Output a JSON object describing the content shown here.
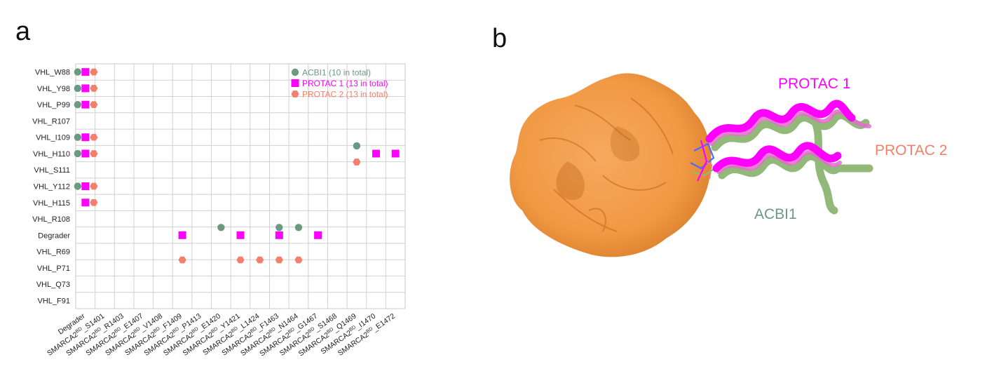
{
  "figure": {
    "panel_a_label": "a",
    "panel_b_label": "b"
  },
  "chart_data": {
    "type": "scatter",
    "title": "",
    "xlabel": "",
    "ylabel": "",
    "y_categories": [
      "VHL_W88",
      "VHL_Y98",
      "VHL_P99",
      "VHL_R107",
      "VHL_I109",
      "VHL_H110",
      "VHL_S111",
      "VHL_Y112",
      "VHL_H115",
      "VHL_R108",
      "Degrader",
      "VHL_R69",
      "VHL_P71",
      "VHL_Q73",
      "VHL_F91"
    ],
    "x_categories": [
      {
        "pre": "Degrader",
        "sup": "",
        "post": ""
      },
      {
        "pre": "SMARCA2",
        "sup": "BD",
        "post": "_S1401"
      },
      {
        "pre": "SMARCA2",
        "sup": "BD",
        "post": "_R1403"
      },
      {
        "pre": "SMARCA2",
        "sup": "BD",
        "post": "_E1407"
      },
      {
        "pre": "SMARCA2",
        "sup": "BD",
        "post": "_V1408"
      },
      {
        "pre": "SMARCA2",
        "sup": "BD",
        "post": "_F1409"
      },
      {
        "pre": "SMARCA2",
        "sup": "BD",
        "post": "_P1413"
      },
      {
        "pre": "SMARCA2",
        "sup": "BD",
        "post": "_E1420"
      },
      {
        "pre": "SMARCA2",
        "sup": "BD",
        "post": "_Y1421"
      },
      {
        "pre": "SMARCA2",
        "sup": "BD",
        "post": "_L1424"
      },
      {
        "pre": "SMARCA2",
        "sup": "BD",
        "post": "_F1463"
      },
      {
        "pre": "SMARCA2",
        "sup": "BD",
        "post": "_N1464"
      },
      {
        "pre": "SMARCA2",
        "sup": "BD",
        "post": "_G1467"
      },
      {
        "pre": "SMARCA2",
        "sup": "BD",
        "post": "_S1468"
      },
      {
        "pre": "SMARCA2",
        "sup": "BD",
        "post": "_Q1469"
      },
      {
        "pre": "SMARCA2",
        "sup": "BD",
        "post": "_I1470"
      },
      {
        "pre": "SMARCA2",
        "sup": "BD",
        "post": "_E1472"
      }
    ],
    "legend_position": "top-right",
    "grid": true,
    "series": [
      {
        "name": "ACBI1 (10 in total)",
        "color": "#6b9a80",
        "marker": "circle",
        "points": [
          [
            0,
            "VHL_W88"
          ],
          [
            0,
            "VHL_Y98"
          ],
          [
            0,
            "VHL_P99"
          ],
          [
            0,
            "VHL_I109"
          ],
          [
            0,
            "VHL_H110"
          ],
          [
            0,
            "VHL_Y112"
          ],
          [
            7,
            "Degrader"
          ],
          [
            10,
            "Degrader"
          ],
          [
            11,
            "Degrader"
          ],
          [
            14,
            "VHL_H110"
          ]
        ]
      },
      {
        "name": "PROTAC 1 (13 in total)",
        "color": "#ff00ff",
        "marker": "square",
        "points": [
          [
            0,
            "VHL_W88"
          ],
          [
            0,
            "VHL_Y98"
          ],
          [
            0,
            "VHL_P99"
          ],
          [
            0,
            "VHL_I109"
          ],
          [
            0,
            "VHL_H110"
          ],
          [
            0,
            "VHL_Y112"
          ],
          [
            0,
            "VHL_H115"
          ],
          [
            5,
            "Degrader"
          ],
          [
            8,
            "Degrader"
          ],
          [
            10,
            "Degrader"
          ],
          [
            12,
            "Degrader"
          ],
          [
            15,
            "VHL_H110"
          ],
          [
            16,
            "VHL_H110"
          ]
        ]
      },
      {
        "name": "PROTAC 2 (13 in total)",
        "color": "#f47f6a",
        "marker": "hexagon",
        "points": [
          [
            0,
            "VHL_W88"
          ],
          [
            0,
            "VHL_Y98"
          ],
          [
            0,
            "VHL_P99"
          ],
          [
            0,
            "VHL_I109"
          ],
          [
            0,
            "VHL_H110"
          ],
          [
            0,
            "VHL_Y112"
          ],
          [
            0,
            "VHL_H115"
          ],
          [
            5,
            "VHL_R69"
          ],
          [
            8,
            "VHL_R69"
          ],
          [
            9,
            "VHL_R69"
          ],
          [
            10,
            "VHL_R69"
          ],
          [
            11,
            "VHL_R69"
          ],
          [
            14,
            "VHL_H110"
          ]
        ]
      }
    ]
  },
  "structure": {
    "labels": [
      {
        "key": "protac1",
        "text": "PROTAC 1",
        "color": "#ff00ff"
      },
      {
        "key": "protac2",
        "text": "PROTAC 2",
        "color": "#f47f6a"
      },
      {
        "key": "acbi1",
        "text": "ACBI1",
        "color": "#6b9a80"
      }
    ],
    "surface_color": "#f29236",
    "helix_colors": [
      "#93b97a",
      "#e66bd0",
      "#ff00ff"
    ]
  }
}
